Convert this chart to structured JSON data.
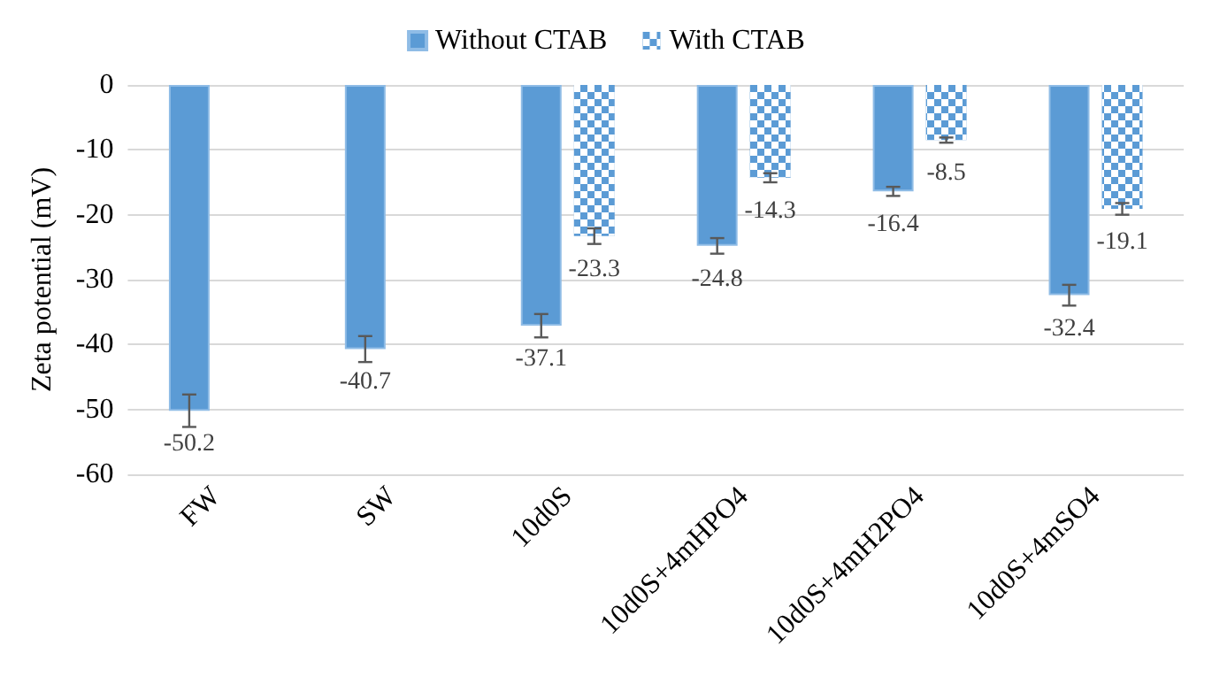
{
  "chart_data": {
    "type": "bar",
    "ylabel": "Zeta potential (mV)",
    "categories": [
      "FW",
      "SW",
      "10d0S",
      "10d0S+4mHPO4",
      "10d0S+4mH2PO4",
      "10d0S+4mSO4"
    ],
    "series": [
      {
        "name": "Without CTAB",
        "color": "#5b9bd5",
        "values": [
          -50.2,
          -40.7,
          -37.1,
          -24.8,
          -16.4,
          -32.4
        ],
        "errors": [
          2.5,
          2.0,
          1.8,
          1.2,
          0.7,
          1.6
        ]
      },
      {
        "name": "With CTAB",
        "color": "#5b9bd5",
        "values": [
          null,
          null,
          -23.3,
          -14.3,
          -8.5,
          -19.1
        ],
        "errors": [
          null,
          null,
          1.2,
          0.7,
          0.4,
          0.9
        ]
      }
    ],
    "ylim": [
      -60,
      0
    ],
    "yticks": [
      -60,
      -50,
      -40,
      -30,
      -20,
      -10,
      0
    ],
    "grid": "y",
    "legend": "top",
    "data_labels": true
  }
}
